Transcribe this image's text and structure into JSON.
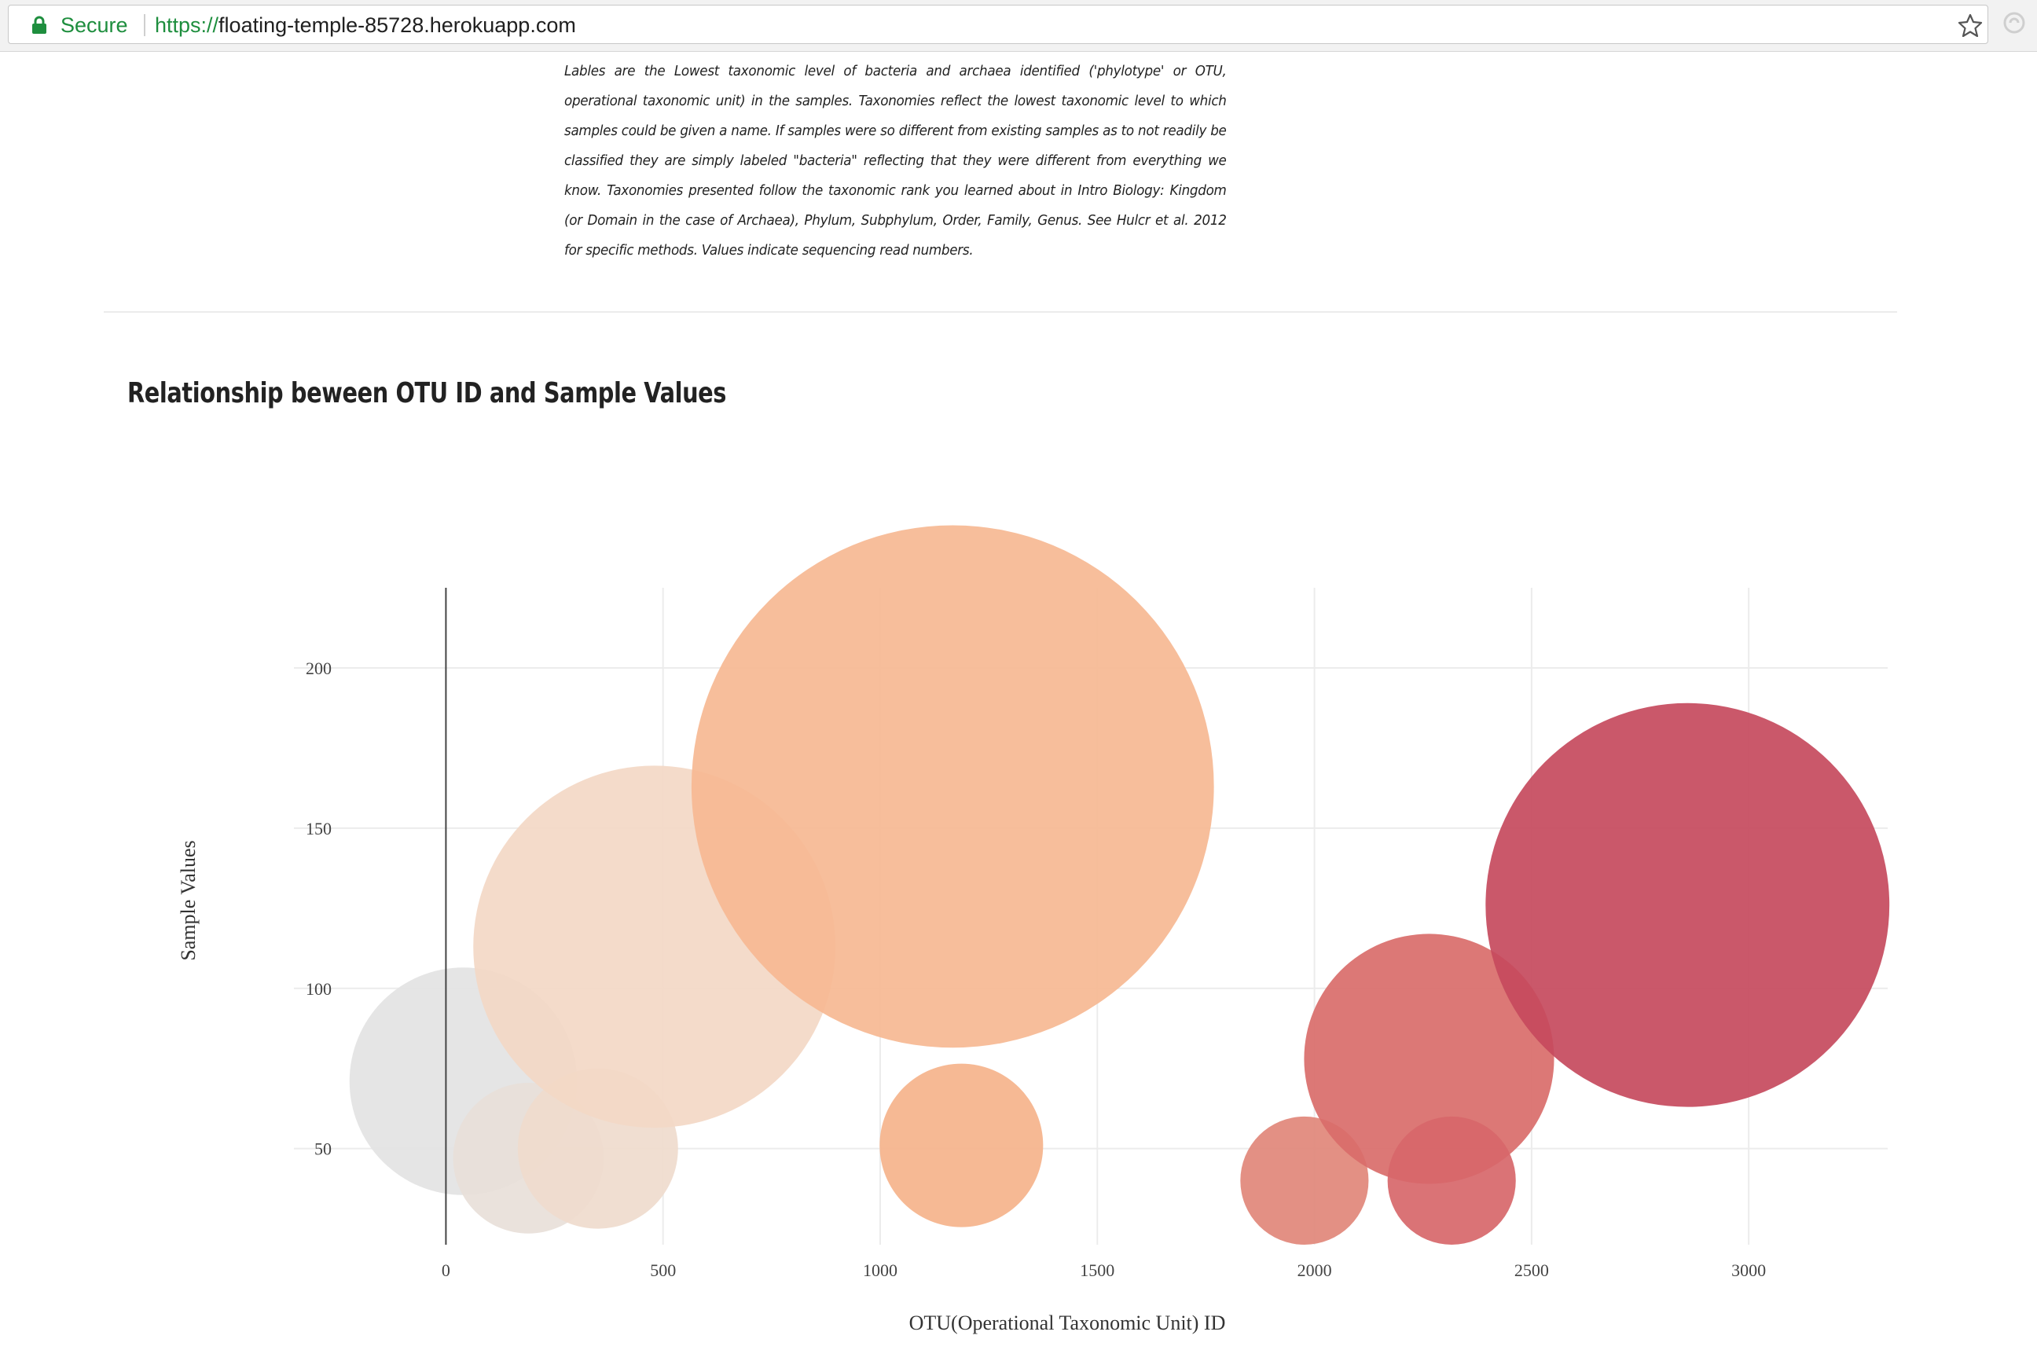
{
  "browser": {
    "secure_label": "Secure",
    "url_scheme": "https://",
    "url_host": "floating-temple-85728.herokuapp.com"
  },
  "intro_text": "Lables are the Lowest taxonomic level of bacteria and archaea identified ('phylotype' or OTU, operational taxonomic unit) in the samples. Taxonomies reflect the lowest taxonomic level to which samples could be given a name. If samples were so different from existing samples as to not readily be classified they are simply labeled \"bacteria\" reflecting that they were different from everything we know. Taxonomies presented follow the taxonomic rank you learned about in Intro Biology: Kingdom (or Domain in the case of Archaea), Phylum, Subphylum, Order, Family, Genus. See Hulcr et al. 2012 for specific methods. Values indicate sequencing read numbers.",
  "section_title": "Relationship beween OTU ID and Sample Values",
  "chart_data": {
    "type": "scatter",
    "variant": "bubble",
    "xlabel": "OTU(Operational Taxonomic Unit) ID",
    "ylabel": "Sample Values",
    "xlim": [
      -350,
      3320
    ],
    "ylim": [
      20,
      225
    ],
    "xticks": [
      0,
      500,
      1000,
      1500,
      2000,
      2500,
      3000
    ],
    "yticks": [
      50,
      100,
      150,
      200
    ],
    "grid": true,
    "zero_line": "x",
    "points": [
      {
        "x": 40,
        "y": 71,
        "size": 71,
        "color": "#e3e3e3"
      },
      {
        "x": 190,
        "y": 47,
        "size": 47,
        "color": "#e8dfd9"
      },
      {
        "x": 350,
        "y": 50,
        "size": 50,
        "color": "#efdbcd"
      },
      {
        "x": 480,
        "y": 113,
        "size": 113,
        "color": "#f3d8c5"
      },
      {
        "x": 1167,
        "y": 163,
        "size": 163,
        "color": "#f6b892"
      },
      {
        "x": 1187,
        "y": 51,
        "size": 51,
        "color": "#f5b38b"
      },
      {
        "x": 1977,
        "y": 40,
        "size": 40,
        "color": "#e1877a"
      },
      {
        "x": 2264,
        "y": 78,
        "size": 78,
        "color": "#d96c6a"
      },
      {
        "x": 2316,
        "y": 40,
        "size": 40,
        "color": "#d7676a"
      },
      {
        "x": 2859,
        "y": 126,
        "size": 126,
        "color": "#c64a5d"
      }
    ]
  }
}
